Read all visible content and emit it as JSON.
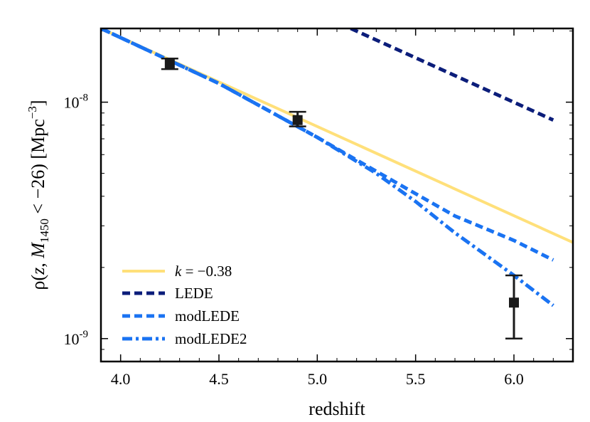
{
  "chart_data": {
    "type": "line",
    "title": "",
    "xlabel": "redshift",
    "ylabel": "ρ(z, M1450 < −26) [Mpc⁻³]",
    "ylabel_parts": {
      "rho": "ρ(",
      "z": "z",
      "comma": ", ",
      "M": "M",
      "msub": "1450",
      "lt": " < −26) [Mpc",
      "sup": "−3",
      "close": "]"
    },
    "xlim": [
      3.9,
      6.3
    ],
    "ylim": [
      8e-10,
      2.05e-08
    ],
    "yscale": "log",
    "xticks": [
      4.0,
      4.5,
      5.0,
      5.5,
      6.0
    ],
    "xtick_labels": [
      "4.0",
      "4.5",
      "5.0",
      "5.5",
      "6.0"
    ],
    "yticks_major": [
      {
        "value": 1e-09,
        "base": "10",
        "exp": "-9"
      },
      {
        "value": 1e-08,
        "base": "10",
        "exp": "-8"
      }
    ],
    "series": [
      {
        "name": "k = −0.38",
        "label_italic": "k",
        "label_rest": " = −0.38",
        "color": "#ffe07a",
        "style": "solid",
        "x": [
          3.9,
          6.3
        ],
        "y": [
          2.05e-08,
          2.55e-09
        ]
      },
      {
        "name": "LEDE",
        "color": "#0b1d7a",
        "style": "dashed",
        "x": [
          5.17,
          6.2
        ],
        "y": [
          2.05e-08,
          8.4e-09
        ]
      },
      {
        "name": "modLEDE",
        "color": "#1a73f2",
        "style": "dashed",
        "x": [
          3.9,
          4.5,
          5.0,
          5.3,
          5.5,
          5.7,
          6.0,
          6.2
        ],
        "y": [
          2.05e-08,
          1.2e-08,
          7.1e-09,
          5.1e-09,
          4.1e-09,
          3.3e-09,
          2.6e-09,
          2.15e-09
        ]
      },
      {
        "name": "modLEDE2",
        "color": "#1a73f2",
        "style": "dashdot",
        "x": [
          3.9,
          4.5,
          5.0,
          5.3,
          5.5,
          5.7,
          6.0,
          6.2
        ],
        "y": [
          2.05e-08,
          1.2e-08,
          7.1e-09,
          5e-09,
          3.8e-09,
          2.8e-09,
          1.85e-09,
          1.38e-09
        ]
      }
    ],
    "data_points": {
      "name": "observations",
      "color": "#1a1a1a",
      "x": [
        4.25,
        4.9,
        6.0
      ],
      "y": [
        1.45e-08,
        8.4e-09,
        1.42e-09
      ],
      "y_low": [
        1.38e-08,
        7.9e-09,
        1e-09
      ],
      "y_high": [
        1.53e-08,
        9.1e-09,
        1.85e-09
      ]
    },
    "legend": "lower-left"
  }
}
